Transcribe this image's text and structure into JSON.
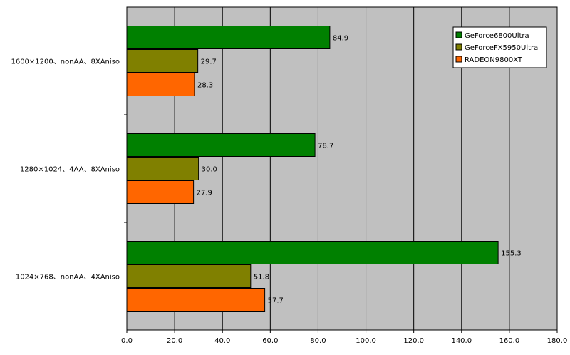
{
  "chart_data": {
    "type": "bar",
    "orientation": "horizontal",
    "categories": [
      "1600×1200、nonAA、8XAniso",
      "1280×1024、4AA、8XAniso",
      "1024×768、nonAA、4XAniso"
    ],
    "series": [
      {
        "name": "GeForce6800Ultra",
        "color": "#008000",
        "values": [
          84.9,
          78.7,
          155.3
        ]
      },
      {
        "name": "GeForceFX5950Ultra",
        "color": "#808000",
        "values": [
          29.7,
          30.0,
          51.8
        ]
      },
      {
        "name": "RADEON9800XT",
        "color": "#FF6600",
        "values": [
          28.3,
          27.9,
          57.7
        ]
      }
    ],
    "xlim": [
      0,
      180
    ],
    "xticks": [
      "0.0",
      "20.0",
      "40.0",
      "60.0",
      "80.0",
      "100.0",
      "120.0",
      "140.0",
      "160.0",
      "180.0"
    ],
    "grid": true,
    "plot_background": "#C0C0C0",
    "legend_position": "top-right"
  }
}
